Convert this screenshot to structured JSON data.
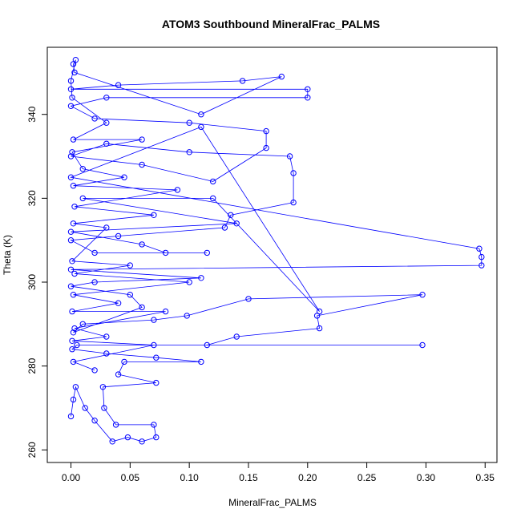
{
  "chart_data": {
    "type": "scatter",
    "title": "ATOM3 Southbound MineralFrac_PALMS",
    "xlabel": "MineralFrac_PALMS",
    "ylabel": "Theta (K)",
    "xlim": [
      -0.02,
      0.36
    ],
    "ylim": [
      257,
      356
    ],
    "xticks": [
      "0.00",
      "0.05",
      "0.10",
      "0.15",
      "0.20",
      "0.25",
      "0.30",
      "0.35"
    ],
    "xtick_values": [
      0,
      0.05,
      0.1,
      0.15,
      0.2,
      0.25,
      0.3,
      0.35
    ],
    "yticks": [
      "260",
      "280",
      "300",
      "320",
      "340"
    ],
    "ytick_values": [
      260,
      280,
      300,
      320,
      340
    ],
    "grid": false,
    "connected": true,
    "color": "#0000ff",
    "points": [
      [
        0.0,
        268
      ],
      [
        0.002,
        272
      ],
      [
        0.004,
        275
      ],
      [
        0.012,
        270
      ],
      [
        0.02,
        267
      ],
      [
        0.035,
        262
      ],
      [
        0.048,
        263
      ],
      [
        0.06,
        262
      ],
      [
        0.072,
        263
      ],
      [
        0.07,
        266
      ],
      [
        0.038,
        266
      ],
      [
        0.028,
        270
      ],
      [
        0.027,
        275
      ],
      [
        0.072,
        276
      ],
      [
        0.04,
        278
      ],
      [
        0.045,
        281
      ],
      [
        0.11,
        281
      ],
      [
        0.072,
        282
      ],
      [
        0.03,
        283
      ],
      [
        0.001,
        284
      ],
      [
        0.005,
        285
      ],
      [
        0.297,
        285
      ],
      [
        0.115,
        285
      ],
      [
        0.14,
        287
      ],
      [
        0.21,
        289
      ],
      [
        0.208,
        292
      ],
      [
        0.297,
        297
      ],
      [
        0.15,
        296
      ],
      [
        0.098,
        292
      ],
      [
        0.07,
        291
      ],
      [
        0.01,
        290
      ],
      [
        0.002,
        288
      ],
      [
        0.06,
        294
      ],
      [
        0.05,
        297
      ],
      [
        0.0,
        299
      ],
      [
        0.02,
        300
      ],
      [
        0.11,
        301
      ],
      [
        0.0,
        303
      ],
      [
        0.347,
        304
      ],
      [
        0.347,
        306
      ],
      [
        0.345,
        308
      ],
      [
        0.0,
        325
      ],
      [
        0.11,
        337
      ],
      [
        0.21,
        293
      ],
      [
        0.12,
        320
      ],
      [
        0.01,
        320
      ],
      [
        0.14,
        314
      ],
      [
        0.0,
        312
      ],
      [
        0.06,
        309
      ],
      [
        0.08,
        307
      ],
      [
        0.115,
        307
      ],
      [
        0.02,
        307
      ],
      [
        0.0,
        310
      ],
      [
        0.04,
        311
      ],
      [
        0.13,
        313
      ],
      [
        0.135,
        316
      ],
      [
        0.188,
        319
      ],
      [
        0.188,
        326
      ],
      [
        0.185,
        330
      ],
      [
        0.1,
        331
      ],
      [
        0.03,
        333
      ],
      [
        0.0,
        330
      ],
      [
        0.06,
        328
      ],
      [
        0.12,
        324
      ],
      [
        0.165,
        332
      ],
      [
        0.165,
        336
      ],
      [
        0.1,
        338
      ],
      [
        0.02,
        339
      ],
      [
        0.0,
        342
      ],
      [
        0.03,
        344
      ],
      [
        0.2,
        344
      ],
      [
        0.2,
        346
      ],
      [
        0.0,
        346
      ],
      [
        0.04,
        347
      ],
      [
        0.145,
        348
      ],
      [
        0.178,
        349
      ],
      [
        0.11,
        340
      ],
      [
        0.003,
        350
      ],
      [
        0.002,
        352
      ],
      [
        0.004,
        353
      ],
      [
        0.0,
        348
      ],
      [
        0.001,
        344
      ],
      [
        0.03,
        338
      ],
      [
        0.002,
        334
      ],
      [
        0.06,
        334
      ],
      [
        0.001,
        331
      ],
      [
        0.01,
        327
      ],
      [
        0.045,
        325
      ],
      [
        0.002,
        323
      ],
      [
        0.09,
        322
      ],
      [
        0.003,
        318
      ],
      [
        0.07,
        316
      ],
      [
        0.002,
        314
      ],
      [
        0.03,
        313
      ],
      [
        0.001,
        305
      ],
      [
        0.05,
        304
      ],
      [
        0.003,
        302
      ],
      [
        0.1,
        300
      ],
      [
        0.002,
        297
      ],
      [
        0.04,
        295
      ],
      [
        0.001,
        293
      ],
      [
        0.08,
        293
      ],
      [
        0.003,
        289
      ],
      [
        0.03,
        287
      ],
      [
        0.001,
        286
      ],
      [
        0.07,
        285
      ],
      [
        0.002,
        281
      ],
      [
        0.02,
        279
      ]
    ]
  }
}
